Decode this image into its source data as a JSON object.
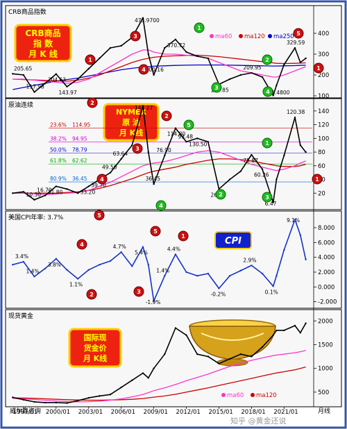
{
  "chart_data": [
    {
      "type": "line",
      "title": "CRB商品指数",
      "badge": [
        "CRB商品",
        "指    数",
        "月 K 线"
      ],
      "legend": [
        "ma60",
        "ma120",
        "ma250"
      ],
      "legend_colors": [
        "#ff33cc",
        "#cc0000",
        "#0000cc"
      ],
      "ylim": [
        100,
        480
      ],
      "y_ticks": [
        100,
        200,
        300,
        400
      ],
      "x": [
        1996,
        1997,
        1998,
        1999,
        2000,
        2001,
        2002,
        2003,
        2004,
        2005,
        2006,
        2007,
        2008,
        2008.5,
        2009,
        2010,
        2011,
        2012,
        2013,
        2014,
        2015,
        2016,
        2017,
        2018,
        2019,
        2020,
        2020.3,
        2021,
        2022,
        2022.5,
        2023
      ],
      "values": [
        205.65,
        200,
        117.98,
        160,
        204.63,
        143.97,
        180,
        230,
        280,
        330,
        340,
        380,
        473.97,
        300,
        200.16,
        330,
        370.72,
        310,
        290,
        280,
        154.85,
        180,
        200,
        209.95,
        190,
        101.48,
        150,
        250,
        329.59,
        260,
        280
      ],
      "ma60": [
        180,
        180,
        175,
        170,
        165,
        160,
        165,
        180,
        210,
        240,
        270,
        300,
        320,
        320,
        310,
        300,
        300,
        295,
        290,
        280,
        260,
        240,
        220,
        210,
        200,
        190,
        190,
        200,
        220,
        230,
        240
      ],
      "ma120": [
        180,
        178,
        176,
        174,
        172,
        170,
        175,
        185,
        200,
        220,
        240,
        260,
        275,
        280,
        285,
        290,
        292,
        294,
        295,
        292,
        288,
        282,
        276,
        270,
        264,
        258,
        256,
        255,
        256,
        257,
        258
      ],
      "ma250": [
        130,
        140,
        150,
        160,
        170,
        178,
        185,
        195,
        205,
        215,
        225,
        232,
        238,
        240,
        242,
        244,
        246,
        247,
        248,
        248,
        248,
        247,
        246,
        245,
        244,
        243,
        243,
        244,
        245,
        246,
        247
      ],
      "annotations": [
        "205.65",
        "204.63",
        "117.98",
        "143.97",
        "473.9700",
        "370.72",
        "200.16",
        "154.85",
        "209.95",
        "101.4800",
        "329.59"
      ]
    },
    {
      "type": "line",
      "title": "原油连续",
      "badge": [
        "NYMEX",
        "原  油",
        "月 K线"
      ],
      "ylim": [
        0,
        150
      ],
      "y_ticks": [
        20,
        40,
        60,
        80,
        100,
        120,
        140
      ],
      "x": [
        1996,
        1997,
        1998,
        1999,
        2000,
        2001,
        2002,
        2003,
        2004,
        2005,
        2006,
        2007,
        2008,
        2008.5,
        2009,
        2010,
        2011,
        2012,
        2013,
        2014,
        2015,
        2016,
        2017,
        2018,
        2019,
        2020,
        2020.3,
        2021,
        2022,
        2022.5,
        2023
      ],
      "values": [
        20,
        22,
        10.3,
        16.7,
        30,
        26,
        20,
        30,
        40,
        50,
        70,
        90,
        147.27,
        80,
        33.2,
        75,
        114.8,
        95,
        100,
        95,
        26.05,
        40,
        52,
        76,
        55,
        6.47,
        40,
        75,
        130.5,
        90,
        80
      ],
      "ma60": [
        20,
        20,
        19,
        18,
        19,
        20,
        21,
        24,
        30,
        36,
        44,
        52,
        60,
        62,
        64,
        66,
        70,
        75,
        80,
        82,
        80,
        74,
        68,
        62,
        58,
        54,
        53,
        55,
        60,
        64,
        67
      ],
      "ma120": [
        20,
        20,
        20,
        20,
        20,
        21,
        22,
        24,
        27,
        31,
        36,
        41,
        47,
        50,
        52,
        55,
        58,
        62,
        65,
        68,
        70,
        70,
        69,
        67,
        64,
        61,
        60,
        59,
        59,
        60,
        62
      ],
      "annotations": [
        "147.27",
        "114.80",
        "120.38",
        "130.50",
        "93.48",
        "75.87",
        "76.90",
        "60.26",
        "63.64",
        "39.70",
        "36.45",
        "31.80",
        "49.50",
        "33.20",
        "16.70",
        "26.05",
        "10.30",
        "6.47"
      ],
      "fib_levels": [
        {
          "pct": "23.6%",
          "value": "114.95",
          "y": 114.95,
          "color": "#cc0000"
        },
        {
          "pct": "38.2%",
          "value": "94.95",
          "y": 94.95,
          "color": "#cc00cc"
        },
        {
          "pct": "50.0%",
          "value": "78.79",
          "y": 78.79,
          "color": "#0000cc"
        },
        {
          "pct": "61.8%",
          "value": "62.62",
          "y": 62.62,
          "color": "#00aa00"
        },
        {
          "pct": "80.9%",
          "value": "36.45",
          "y": 36.45,
          "color": "#0066cc"
        }
      ]
    },
    {
      "type": "line",
      "title": "美国CPI年率: 3.7%",
      "badge": "CPI",
      "ylim": [
        -2.5,
        9.5
      ],
      "y_ticks": [
        "-2.000",
        "0.000",
        "2.000",
        "4.000",
        "6.000",
        "8.000"
      ],
      "y_tick_values": [
        -2,
        0,
        2,
        4,
        6,
        8
      ],
      "x": [
        1996,
        1997,
        1998,
        1999,
        2000,
        2001,
        2002,
        2003,
        2004,
        2005,
        2006,
        2007,
        2008,
        2008.5,
        2009,
        2010,
        2011,
        2012,
        2013,
        2014,
        2015,
        2016,
        2017,
        2018,
        2019,
        2020,
        2020.3,
        2021,
        2022,
        2022.5,
        2023
      ],
      "values": [
        3.0,
        3.4,
        1.4,
        2.5,
        3.8,
        2.3,
        1.1,
        2.3,
        3.0,
        3.5,
        4.7,
        2.8,
        5.4,
        3.0,
        -1.9,
        1.5,
        4.4,
        2.0,
        1.5,
        1.8,
        -0.2,
        1.5,
        2.2,
        2.9,
        1.8,
        0.1,
        1.5,
        5.0,
        9.1,
        7.0,
        3.7
      ],
      "annotations": [
        "3.4%",
        "3.8%",
        "1.4%",
        "1.1%",
        "4.7%",
        "5.4%",
        "1.4%",
        "-1.9%",
        "4.4%",
        "-0.2%",
        "2.9%",
        "0.1%",
        "9.1%"
      ]
    },
    {
      "type": "line",
      "title": "现货黄金",
      "badge": [
        "国际现",
        "货金价",
        "月 K线"
      ],
      "legend": [
        "ma60",
        "ma120"
      ],
      "legend_colors": [
        "#ff33cc",
        "#cc0000"
      ],
      "ylim": [
        250,
        2150
      ],
      "y_ticks": [
        500,
        1000,
        1500,
        2000
      ],
      "x": [
        1996,
        1997,
        1998,
        1999,
        2000,
        2001,
        2002,
        2003,
        2004,
        2005,
        2006,
        2007,
        2008,
        2008.5,
        2009,
        2010,
        2011,
        2012,
        2013,
        2014,
        2015,
        2016,
        2017,
        2018,
        2019,
        2020,
        2020.3,
        2021,
        2022,
        2022.5,
        2023
      ],
      "values": [
        390,
        340,
        295,
        280,
        280,
        270,
        320,
        380,
        420,
        450,
        600,
        750,
        900,
        800,
        1000,
        1300,
        1850,
        1700,
        1300,
        1250,
        1100,
        1200,
        1300,
        1250,
        1450,
        1700,
        1800,
        1800,
        1900,
        1750,
        1950
      ],
      "ma60": [
        370,
        360,
        345,
        330,
        315,
        300,
        295,
        300,
        310,
        330,
        360,
        400,
        450,
        490,
        530,
        590,
        660,
        740,
        810,
        880,
        960,
        1040,
        1110,
        1170,
        1220,
        1270,
        1280,
        1300,
        1330,
        1350,
        1380
      ],
      "ma120": [
        380,
        375,
        370,
        360,
        350,
        340,
        335,
        330,
        330,
        335,
        340,
        350,
        365,
        380,
        395,
        420,
        455,
        500,
        545,
        590,
        640,
        690,
        740,
        790,
        840,
        890,
        905,
        930,
        970,
        1000,
        1030
      ],
      "x_labels": [
        "1997/01",
        "2000/01",
        "2003/01",
        "2006/01",
        "2009/01",
        "2012/01",
        "2015/01",
        "2018/01",
        "2021/01"
      ],
      "x_label_values": [
        1997,
        2000,
        2003,
        2006,
        2009,
        2012,
        2015,
        2018,
        2021
      ]
    }
  ],
  "footer": {
    "source": "威尔鑫咨询",
    "axis_end": "月线",
    "watermark": "知乎 @黄金还说"
  },
  "markers": {
    "red_numbers": [
      "1",
      "2",
      "3",
      "4",
      "5"
    ],
    "green_numbers": [
      "1",
      "2",
      "3",
      "4",
      "5"
    ]
  }
}
